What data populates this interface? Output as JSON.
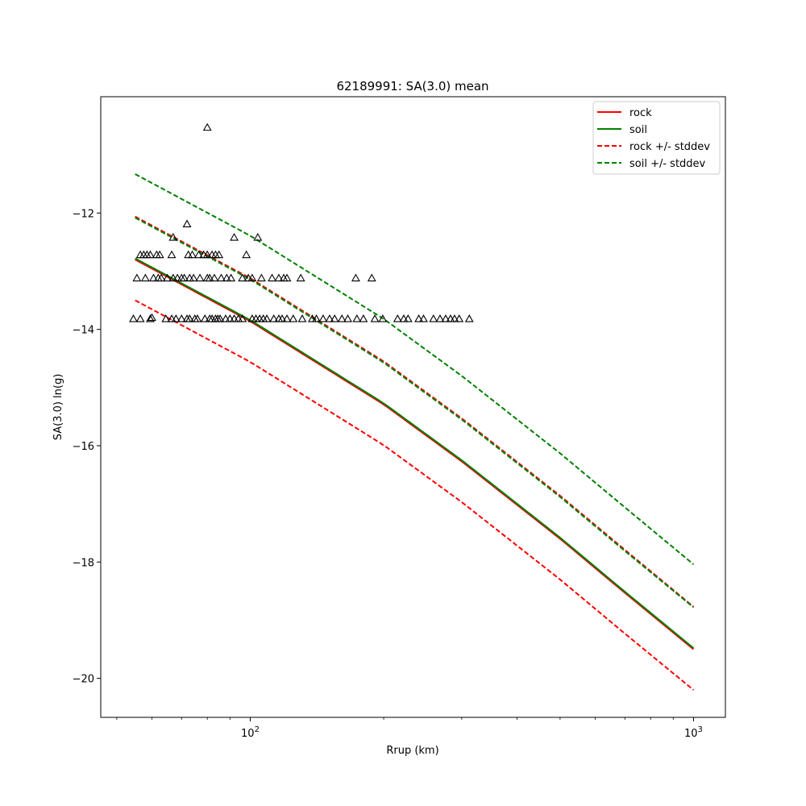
{
  "chart_data": {
    "type": "line",
    "title": "62189991: SA(3.0) mean",
    "xlabel": "Rrup (km)",
    "ylabel": "SA(3.0) ln(g)",
    "xscale": "log",
    "xlim": [
      46,
      1180
    ],
    "ylim": [
      -20.67,
      -10.0
    ],
    "xticks": [
      {
        "value": 100,
        "base": "10",
        "exp": "2"
      },
      {
        "value": 1000,
        "base": "10",
        "exp": "3"
      }
    ],
    "yticks": [
      -12,
      -14,
      -16,
      -18,
      -20
    ],
    "grid": false,
    "legend": {
      "location": "top-right",
      "entries": [
        {
          "label": "rock",
          "color": "#ff0000",
          "style": "solid"
        },
        {
          "label": "soil",
          "color": "#008000",
          "style": "solid"
        },
        {
          "label": "rock +/- stddev",
          "color": "#ff0000",
          "style": "dashed"
        },
        {
          "label": "soil +/- stddev",
          "color": "#008000",
          "style": "dashed"
        }
      ]
    },
    "curves": {
      "x": [
        55,
        100,
        200,
        300,
        500,
        700,
        1000
      ],
      "rock": {
        "color": "#ff0000",
        "values": [
          -12.8,
          -13.86,
          -15.29,
          -16.27,
          -17.6,
          -18.53,
          -19.5
        ]
      },
      "soil": {
        "color": "#008000",
        "values": [
          -12.78,
          -13.84,
          -15.27,
          -16.25,
          -17.58,
          -18.51,
          -19.48
        ]
      },
      "rock_plus": {
        "color": "#ff0000",
        "values": [
          -12.06,
          -13.12,
          -14.55,
          -15.53,
          -16.86,
          -17.79,
          -18.77
        ]
      },
      "rock_minus": {
        "color": "#ff0000",
        "values": [
          -13.5,
          -14.56,
          -15.99,
          -16.97,
          -18.3,
          -19.23,
          -20.2
        ]
      },
      "soil_plus": {
        "color": "#008000",
        "values": [
          -11.33,
          -12.39,
          -13.82,
          -14.8,
          -16.13,
          -17.06,
          -18.04
        ]
      },
      "soil_minus": {
        "color": "#008000",
        "values": [
          -12.08,
          -13.14,
          -14.57,
          -15.55,
          -16.88,
          -17.81,
          -18.78
        ]
      }
    },
    "observations": {
      "marker": "triangle",
      "color": "#000000",
      "points": [
        [
          54.5,
          -13.82
        ],
        [
          56.5,
          -13.82
        ],
        [
          59.5,
          -13.82
        ],
        [
          60.0,
          -13.8
        ],
        [
          64.5,
          -13.82
        ],
        [
          66.5,
          -13.82
        ],
        [
          68.0,
          -13.82
        ],
        [
          70.0,
          -13.82
        ],
        [
          72.0,
          -13.82
        ],
        [
          73.0,
          -13.82
        ],
        [
          75.0,
          -13.82
        ],
        [
          76.0,
          -13.82
        ],
        [
          79.0,
          -13.82
        ],
        [
          81.0,
          -13.82
        ],
        [
          82.0,
          -13.82
        ],
        [
          83.5,
          -13.82
        ],
        [
          84.5,
          -13.82
        ],
        [
          85.5,
          -13.82
        ],
        [
          88.0,
          -13.82
        ],
        [
          90.0,
          -13.82
        ],
        [
          92.0,
          -13.82
        ],
        [
          94.0,
          -13.82
        ],
        [
          96.0,
          -13.82
        ],
        [
          101.0,
          -13.82
        ],
        [
          103.0,
          -13.82
        ],
        [
          105.0,
          -13.82
        ],
        [
          107.0,
          -13.82
        ],
        [
          109.0,
          -13.82
        ],
        [
          113.0,
          -13.82
        ],
        [
          116.0,
          -13.82
        ],
        [
          118.0,
          -13.82
        ],
        [
          121.0,
          -13.82
        ],
        [
          125.0,
          -13.82
        ],
        [
          131.0,
          -13.82
        ],
        [
          138.0,
          -13.82
        ],
        [
          141.0,
          -13.82
        ],
        [
          146.0,
          -13.82
        ],
        [
          151.0,
          -13.82
        ],
        [
          155.0,
          -13.82
        ],
        [
          161.0,
          -13.82
        ],
        [
          166.0,
          -13.82
        ],
        [
          174.0,
          -13.82
        ],
        [
          180.0,
          -13.82
        ],
        [
          191.0,
          -13.82
        ],
        [
          199.0,
          -13.82
        ],
        [
          215.0,
          -13.82
        ],
        [
          222.0,
          -13.82
        ],
        [
          227.0,
          -13.82
        ],
        [
          240.0,
          -13.82
        ],
        [
          246.0,
          -13.82
        ],
        [
          259.0,
          -13.82
        ],
        [
          268.0,
          -13.82
        ],
        [
          276.0,
          -13.82
        ],
        [
          283.0,
          -13.82
        ],
        [
          289.0,
          -13.82
        ],
        [
          296.0,
          -13.82
        ],
        [
          312.0,
          -13.82
        ],
        [
          55.5,
          -13.12
        ],
        [
          58.0,
          -13.12
        ],
        [
          60.5,
          -13.12
        ],
        [
          62.0,
          -13.12
        ],
        [
          63.0,
          -13.12
        ],
        [
          65.0,
          -13.12
        ],
        [
          67.0,
          -13.12
        ],
        [
          68.5,
          -13.12
        ],
        [
          70.0,
          -13.12
        ],
        [
          71.0,
          -13.12
        ],
        [
          73.0,
          -13.12
        ],
        [
          74.5,
          -13.12
        ],
        [
          77.0,
          -13.12
        ],
        [
          80.0,
          -13.12
        ],
        [
          81.0,
          -13.12
        ],
        [
          83.0,
          -13.12
        ],
        [
          86.0,
          -13.12
        ],
        [
          88.5,
          -13.12
        ],
        [
          90.5,
          -13.12
        ],
        [
          96.0,
          -13.12
        ],
        [
          99.0,
          -13.12
        ],
        [
          101.0,
          -13.12
        ],
        [
          106.0,
          -13.12
        ],
        [
          112.0,
          -13.12
        ],
        [
          116.0,
          -13.12
        ],
        [
          119.0,
          -13.12
        ],
        [
          121.0,
          -13.12
        ],
        [
          130.0,
          -13.12
        ],
        [
          173.0,
          -13.12
        ],
        [
          188.0,
          -13.12
        ],
        [
          56.5,
          -12.72
        ],
        [
          57.5,
          -12.72
        ],
        [
          58.5,
          -12.72
        ],
        [
          59.5,
          -12.72
        ],
        [
          61.5,
          -12.72
        ],
        [
          62.5,
          -12.72
        ],
        [
          66.5,
          -12.72
        ],
        [
          72.5,
          -12.72
        ],
        [
          74.0,
          -12.72
        ],
        [
          76.5,
          -12.72
        ],
        [
          78.5,
          -12.72
        ],
        [
          80.0,
          -12.72
        ],
        [
          82.0,
          -12.72
        ],
        [
          83.5,
          -12.72
        ],
        [
          85.0,
          -12.72
        ],
        [
          98.0,
          -12.72
        ],
        [
          67.0,
          -12.42
        ],
        [
          92.0,
          -12.42
        ],
        [
          104.0,
          -12.42
        ],
        [
          72.0,
          -12.19
        ],
        [
          80.0,
          -10.53
        ]
      ]
    }
  }
}
